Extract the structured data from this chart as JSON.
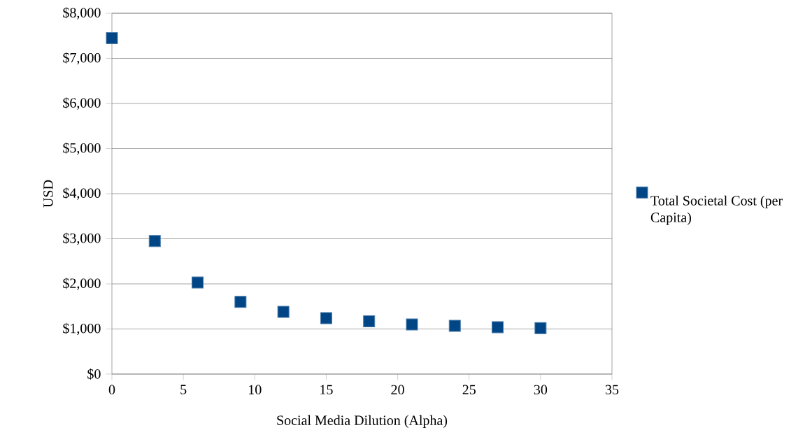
{
  "chart_data": {
    "type": "scatter",
    "xlabel": "Social Media Dilution (Alpha)",
    "ylabel": "USD",
    "x": [
      0,
      3,
      6,
      9,
      12,
      15,
      18,
      21,
      24,
      27,
      30
    ],
    "series": [
      {
        "name": "Total Societal Cost (per Capita)",
        "color": "#004586",
        "values": [
          7450,
          2950,
          2030,
          1600,
          1380,
          1240,
          1170,
          1100,
          1070,
          1040,
          1020
        ]
      }
    ],
    "xlim": [
      0,
      35
    ],
    "xticks": [
      0,
      5,
      10,
      15,
      20,
      25,
      30,
      35
    ],
    "ylim": [
      0,
      8000
    ],
    "yticks": [
      {
        "value": 0,
        "label": "$0"
      },
      {
        "value": 1000,
        "label": "$1,000"
      },
      {
        "value": 2000,
        "label": "$2,000"
      },
      {
        "value": 3000,
        "label": "$3,000"
      },
      {
        "value": 4000,
        "label": "$4,000"
      },
      {
        "value": 5000,
        "label": "$5,000"
      },
      {
        "value": 6000,
        "label": "$6,000"
      },
      {
        "value": 7000,
        "label": "$7,000"
      },
      {
        "value": 8000,
        "label": "$8,000"
      }
    ],
    "grid": "y",
    "legend": "right",
    "marker": "square"
  }
}
